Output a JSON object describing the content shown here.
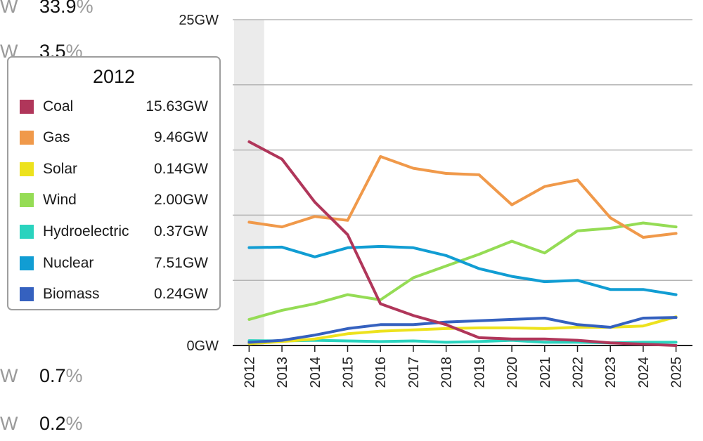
{
  "background_list": [
    {
      "unit": "W",
      "pct": "33.9",
      "sign": "%"
    },
    {
      "unit": "W",
      "pct": "3.5",
      "sign": "%"
    },
    {
      "unit": "W",
      "pct": "0.7",
      "sign": "%"
    },
    {
      "unit": "W",
      "pct": "0.2",
      "sign": "%"
    }
  ],
  "tooltip": {
    "year": "2012",
    "rows": [
      {
        "name": "Coal",
        "value": "15.63GW",
        "color": "#b0365a"
      },
      {
        "name": "Gas",
        "value": "9.46GW",
        "color": "#f0994a"
      },
      {
        "name": "Solar",
        "value": "0.14GW",
        "color": "#ede21d"
      },
      {
        "name": "Wind",
        "value": "2.00GW",
        "color": "#95dc55"
      },
      {
        "name": "Hydroelectric",
        "value": "0.37GW",
        "color": "#2ad3be"
      },
      {
        "name": "Nuclear",
        "value": "7.51GW",
        "color": "#119dd3"
      },
      {
        "name": "Biomass",
        "value": "0.24GW",
        "color": "#3561bf"
      }
    ]
  },
  "chart_data": {
    "type": "line",
    "title": "",
    "xlabel": "",
    "ylabel": "",
    "ylim": [
      0,
      25
    ],
    "y_ticks": [
      "0GW",
      "",
      "",
      "",
      "",
      "25GW"
    ],
    "categories": [
      "2012",
      "2013",
      "2014",
      "2015",
      "2016",
      "2017",
      "2018",
      "2019",
      "2020",
      "2021",
      "2022",
      "2023",
      "2024",
      "2025"
    ],
    "highlight_category": "2012",
    "series": [
      {
        "name": "Coal",
        "color": "#b0365a",
        "values": [
          15.63,
          14.3,
          11.0,
          8.5,
          3.2,
          2.3,
          1.6,
          0.6,
          0.5,
          0.5,
          0.4,
          0.2,
          0.1,
          0.0
        ]
      },
      {
        "name": "Gas",
        "color": "#f0994a",
        "values": [
          9.46,
          9.1,
          9.9,
          9.6,
          14.5,
          13.6,
          13.2,
          13.1,
          10.8,
          12.2,
          12.7,
          9.8,
          8.3,
          8.6
        ]
      },
      {
        "name": "Solar",
        "color": "#ede21d",
        "values": [
          0.14,
          0.3,
          0.5,
          0.9,
          1.1,
          1.2,
          1.3,
          1.35,
          1.35,
          1.3,
          1.4,
          1.4,
          1.5,
          2.2
        ]
      },
      {
        "name": "Wind",
        "color": "#95dc55",
        "values": [
          2.0,
          2.7,
          3.2,
          3.9,
          3.5,
          5.2,
          6.1,
          7.0,
          8.0,
          7.1,
          8.8,
          9.0,
          9.4,
          9.1
        ]
      },
      {
        "name": "Hydroelectric",
        "color": "#2ad3be",
        "values": [
          0.37,
          0.35,
          0.4,
          0.35,
          0.3,
          0.35,
          0.25,
          0.3,
          0.4,
          0.25,
          0.25,
          0.2,
          0.25,
          0.25
        ]
      },
      {
        "name": "Nuclear",
        "color": "#119dd3",
        "values": [
          7.51,
          7.55,
          6.8,
          7.5,
          7.6,
          7.5,
          6.9,
          5.9,
          5.3,
          4.9,
          5.0,
          4.3,
          4.3,
          3.9
        ]
      },
      {
        "name": "Biomass",
        "color": "#3561bf",
        "values": [
          0.24,
          0.4,
          0.8,
          1.3,
          1.6,
          1.6,
          1.8,
          1.9,
          2.0,
          2.1,
          1.6,
          1.4,
          2.1,
          2.15
        ]
      }
    ]
  }
}
